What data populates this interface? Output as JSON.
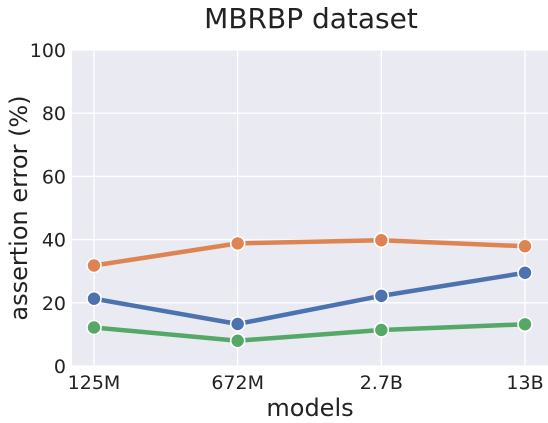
{
  "chart_data": {
    "type": "line",
    "title": "MBRBP dataset",
    "xlabel": "models",
    "ylabel": "assertion error (%)",
    "categories": [
      "125M",
      "672M",
      "2.7B",
      "13B"
    ],
    "ylim": [
      0,
      100
    ],
    "yticks": [
      0,
      20,
      40,
      60,
      80,
      100
    ],
    "grid": true,
    "legend": "none",
    "background_color": "#eaeaf2",
    "grid_color": "#ffffff",
    "series": [
      {
        "color": "#dd8452",
        "values": [
          31.8,
          38.8,
          39.8,
          37.9
        ]
      },
      {
        "color": "#4c72b0",
        "values": [
          21.3,
          13.3,
          22.2,
          29.5
        ]
      },
      {
        "color": "#55a868",
        "values": [
          12.2,
          8.0,
          11.4,
          13.2
        ]
      }
    ]
  }
}
